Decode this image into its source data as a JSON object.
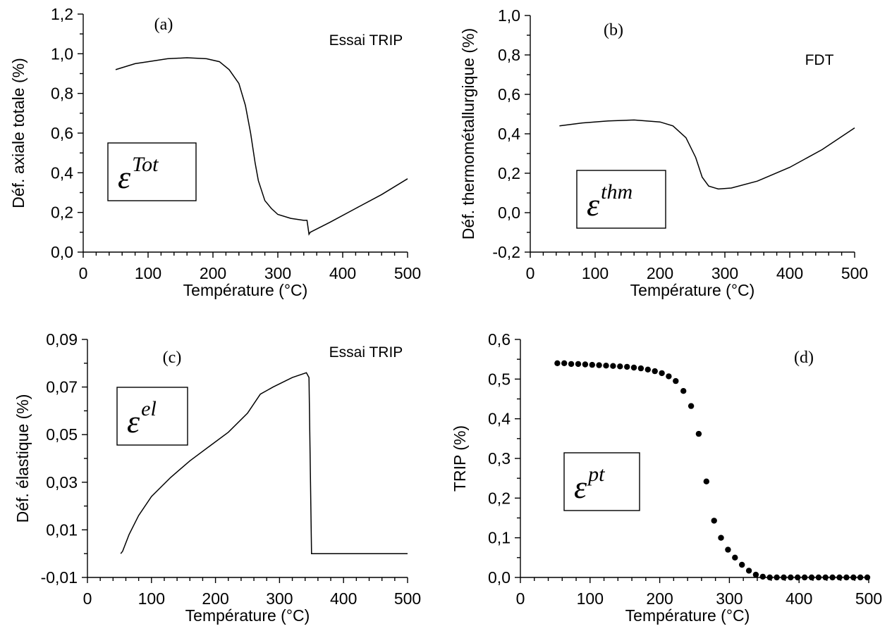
{
  "figure": {
    "xlabel": "Température (°C)",
    "colors": {
      "line": "#000000",
      "background": "#ffffff"
    }
  },
  "chart_data": [
    {
      "id": "a",
      "type": "line",
      "panel_label": "(a)",
      "annotation": "Essai TRIP",
      "symbol": {
        "main": "ε",
        "sup": "Tot"
      },
      "xlabel": "Température (°C)",
      "ylabel": "Déf. axiale totale (%)",
      "xlim": [
        0,
        500
      ],
      "ylim": [
        0.0,
        1.2
      ],
      "xticks": [
        0,
        100,
        200,
        300,
        400,
        500
      ],
      "yticks": [
        "0,0",
        "0,2",
        "0,4",
        "0,6",
        "0,8",
        "1,0",
        "1,2"
      ],
      "grid": false,
      "series": [
        {
          "x": [
            50,
            80,
            100,
            130,
            160,
            190,
            210,
            225,
            240,
            250,
            258,
            265,
            270,
            280,
            290,
            300,
            320,
            340,
            345,
            348,
            350,
            380,
            420,
            460,
            500
          ],
          "y": [
            0.92,
            0.95,
            0.96,
            0.975,
            0.98,
            0.975,
            0.96,
            0.92,
            0.85,
            0.74,
            0.6,
            0.45,
            0.36,
            0.26,
            0.22,
            0.19,
            0.17,
            0.16,
            0.16,
            0.09,
            0.1,
            0.15,
            0.22,
            0.29,
            0.37
          ]
        }
      ]
    },
    {
      "id": "b",
      "type": "line",
      "panel_label": "(b)",
      "annotation": "FDT",
      "symbol": {
        "main": "ε",
        "sup": "thm"
      },
      "xlabel": "Température (°C)",
      "ylabel": "Déf. thermométallurgique  (%)",
      "xlim": [
        0,
        500
      ],
      "ylim": [
        -0.2,
        1.0
      ],
      "xticks": [
        0,
        100,
        200,
        300,
        400,
        500
      ],
      "yticks": [
        "-0,2",
        "0,0",
        "0,2",
        "0,4",
        "0,6",
        "0,8",
        "1,0"
      ],
      "grid": false,
      "series": [
        {
          "x": [
            45,
            80,
            120,
            160,
            200,
            220,
            240,
            255,
            265,
            275,
            290,
            310,
            350,
            400,
            450,
            500
          ],
          "y": [
            0.44,
            0.455,
            0.465,
            0.47,
            0.46,
            0.44,
            0.38,
            0.28,
            0.18,
            0.135,
            0.12,
            0.125,
            0.16,
            0.23,
            0.32,
            0.43
          ]
        }
      ]
    },
    {
      "id": "c",
      "type": "line",
      "panel_label": "(c)",
      "annotation": "Essai TRIP",
      "symbol": {
        "main": "ε",
        "sup": "el"
      },
      "xlabel": "Température (°C)",
      "ylabel": "Déf. élastique (%)",
      "xlim": [
        0,
        500
      ],
      "ylim": [
        -0.01,
        0.09
      ],
      "xticks": [
        0,
        100,
        200,
        300,
        400,
        500
      ],
      "yticks": [
        "-0,01",
        "0,01",
        "0,03",
        "0,05",
        "0,07",
        "0,09"
      ],
      "grid": false,
      "series": [
        {
          "x": [
            52,
            55,
            65,
            80,
            100,
            130,
            160,
            190,
            220,
            250,
            270,
            290,
            320,
            342,
            346,
            350,
            400,
            450,
            500
          ],
          "y": [
            0.0,
            0.001,
            0.008,
            0.016,
            0.024,
            0.032,
            0.039,
            0.045,
            0.051,
            0.059,
            0.067,
            0.07,
            0.074,
            0.076,
            0.074,
            0.0,
            0.0,
            0.0,
            0.0
          ]
        }
      ]
    },
    {
      "id": "d",
      "type": "scatter",
      "panel_label": "(d)",
      "annotation": "",
      "symbol": {
        "main": "ε",
        "sup": "pt"
      },
      "xlabel": "Température (°C)",
      "ylabel": "TRIP (%)",
      "xlim": [
        0,
        500
      ],
      "ylim": [
        0.0,
        0.6
      ],
      "xticks": [
        0,
        100,
        200,
        300,
        400,
        500
      ],
      "yticks": [
        "0,0",
        "0,1",
        "0,2",
        "0,3",
        "0,4",
        "0,5",
        "0,6"
      ],
      "grid": false,
      "series": [
        {
          "x": [
            53,
            63,
            73,
            83,
            93,
            103,
            113,
            123,
            133,
            143,
            153,
            163,
            173,
            183,
            193,
            203,
            213,
            223,
            234,
            245,
            256,
            267,
            278,
            288,
            298,
            308,
            318,
            328,
            338,
            348,
            358,
            368,
            378,
            388,
            398,
            408,
            418,
            428,
            438,
            448,
            458,
            468,
            478,
            488,
            498
          ],
          "y": [
            0.54,
            0.54,
            0.538,
            0.538,
            0.537,
            0.536,
            0.535,
            0.534,
            0.533,
            0.532,
            0.531,
            0.529,
            0.527,
            0.524,
            0.52,
            0.515,
            0.507,
            0.495,
            0.47,
            0.432,
            0.362,
            0.242,
            0.143,
            0.1,
            0.07,
            0.05,
            0.032,
            0.017,
            0.007,
            0.002,
            0.0,
            0.0,
            0.0,
            0.0,
            0.0,
            0.0,
            0.0,
            0.0,
            0.0,
            0.0,
            0.0,
            0.0,
            0.0,
            0.0,
            0.0
          ]
        }
      ]
    }
  ]
}
